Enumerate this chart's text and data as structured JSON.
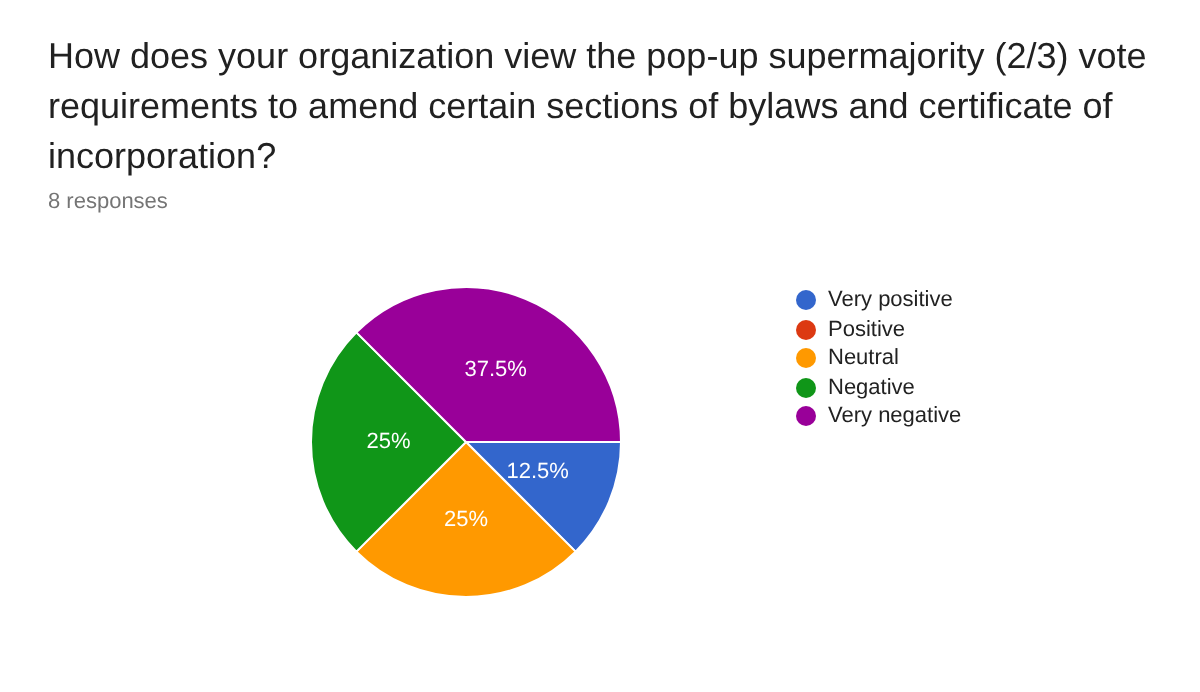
{
  "chart_data": {
    "type": "pie",
    "title": "How does your organization view the pop-up supermajority (2/3) vote requirements to amend certain sections of bylaws and certificate of incorporation?",
    "subtitle": "8 responses",
    "categories": [
      "Very positive",
      "Positive",
      "Neutral",
      "Negative",
      "Very negative"
    ],
    "values": [
      12.5,
      0,
      25,
      25,
      37.5
    ],
    "colors": [
      "#3366cc",
      "#dc3912",
      "#ff9900",
      "#109618",
      "#990099"
    ],
    "value_labels": [
      "12.5%",
      null,
      "25%",
      "25%",
      "37.5%"
    ],
    "legend": "right"
  }
}
